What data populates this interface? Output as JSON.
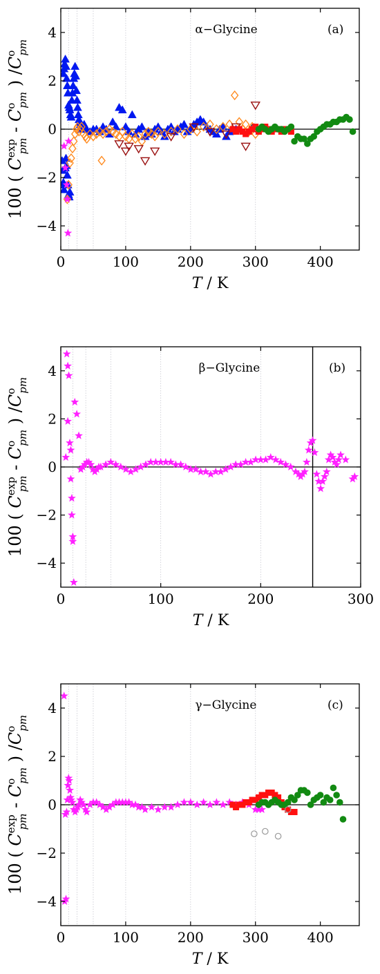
{
  "colors": {
    "blue": "#0018f0",
    "orange": "#ff8a1e",
    "darkred": "#9a1010",
    "black": "#000000",
    "red": "#ff1010",
    "green": "#128a12",
    "magenta": "#ff20ff",
    "gray": "#9a9a9a"
  },
  "chart_data": [
    {
      "type": "scatter",
      "panel_label": "(a)",
      "annotation": "α−Glycine",
      "xlabel": "T / K",
      "ylabel": "100 ( C_pm^exp - C_pm^o ) / C_pm^o",
      "xlim": [
        0,
        460
      ],
      "ylim": [
        -5,
        5
      ],
      "xticks": [
        0,
        100,
        200,
        300,
        400
      ],
      "yticks": [
        -4,
        -2,
        0,
        2,
        4
      ],
      "reference_lines": {
        "horizontal_y": [
          0
        ],
        "dotted_vertical_x": [
          12,
          25,
          50,
          100,
          200,
          300
        ]
      },
      "series": [
        {
          "marker": "triangle-up-filled",
          "color": "blue",
          "x": [
            2,
            3,
            4,
            5,
            6,
            7,
            8,
            9,
            10,
            11,
            12,
            13,
            14,
            4,
            5,
            6,
            7,
            8,
            9,
            10,
            11,
            12,
            13,
            14,
            15,
            16,
            17,
            18,
            19,
            20,
            21,
            22,
            23,
            24,
            25,
            26,
            27,
            28,
            29,
            30,
            31,
            32,
            34,
            36,
            40,
            45,
            50,
            55,
            60,
            65,
            70,
            75,
            80,
            85,
            90,
            95,
            100,
            105,
            110,
            115,
            120,
            125,
            130,
            135,
            140,
            145,
            150,
            155,
            160,
            165,
            170,
            175,
            180,
            185,
            190,
            195,
            200,
            205,
            210,
            215,
            220,
            225,
            230,
            235,
            240,
            245,
            250,
            255,
            260,
            265,
            270
          ],
          "y": [
            -1.3,
            -1.7,
            -2.2,
            -2.5,
            -2.3,
            -1.6,
            -1.2,
            -1.5,
            -1.9,
            -2.3,
            -2.7,
            -2.8,
            -2.6,
            2.3,
            2.5,
            2.7,
            2.9,
            2.6,
            2.1,
            1.8,
            1.5,
            1.0,
            0.9,
            0.8,
            0.6,
            0.5,
            1.2,
            1.5,
            1.8,
            2.1,
            2.3,
            2.6,
            2.2,
            1.6,
            1.2,
            0.9,
            0.6,
            0.4,
            0.3,
            0.2,
            0.1,
            0.0,
            0.1,
            0.2,
            0.0,
            -0.1,
            0.0,
            0.0,
            -0.1,
            0.1,
            0.0,
            -0.2,
            0.3,
            0.1,
            0.9,
            0.8,
            0.1,
            -0.1,
            0.6,
            -0.2,
            0.0,
            0.1,
            -0.3,
            -0.1,
            -0.2,
            0.0,
            0.1,
            -0.1,
            -0.3,
            0.0,
            0.1,
            -0.1,
            0.0,
            0.1,
            0.2,
            -0.1,
            0.0,
            0.2,
            0.3,
            0.4,
            0.3,
            0.1,
            0.0,
            -0.1,
            -0.2,
            0.0,
            0.1,
            -0.3,
            -0.1,
            0.0,
            0.0
          ]
        },
        {
          "marker": "diamond-open",
          "color": "orange",
          "x": [
            10,
            12,
            14,
            16,
            18,
            20,
            22,
            24,
            26,
            28,
            30,
            32,
            35,
            38,
            40,
            45,
            50,
            55,
            60,
            63,
            65,
            70,
            75,
            80,
            85,
            90,
            95,
            100,
            105,
            110,
            115,
            120,
            125,
            130,
            135,
            140,
            145,
            150,
            160,
            170,
            180,
            190,
            200,
            210,
            220,
            230,
            240,
            250,
            260,
            268,
            275,
            280,
            285,
            290,
            295,
            300
          ],
          "y": [
            -2.9,
            -2.3,
            -1.4,
            -1.2,
            -0.8,
            -0.5,
            -0.2,
            0.0,
            0.1,
            -0.1,
            0.0,
            0.1,
            -0.2,
            -0.3,
            -0.4,
            -0.2,
            -0.3,
            -0.2,
            -0.1,
            -1.3,
            -0.2,
            -0.1,
            0.0,
            -0.1,
            -0.2,
            -0.3,
            -0.1,
            -0.3,
            -0.4,
            -0.2,
            -0.4,
            -0.3,
            -0.5,
            -0.2,
            -0.1,
            -0.2,
            -0.3,
            -0.1,
            -0.2,
            -0.1,
            0.0,
            -0.2,
            0.0,
            -0.1,
            0.1,
            0.2,
            0.0,
            0.1,
            0.2,
            1.4,
            0.3,
            0.0,
            0.2,
            -0.1,
            0.1,
            -0.2
          ]
        },
        {
          "marker": "triangle-down-open",
          "color": "darkred",
          "x": [
            90,
            100,
            105,
            120,
            130,
            145,
            170,
            205,
            230,
            255,
            270,
            285,
            300
          ],
          "y": [
            -0.6,
            -0.9,
            -0.7,
            -0.8,
            -1.3,
            -0.9,
            -0.3,
            0.1,
            -0.1,
            -0.2,
            0.1,
            -0.7,
            1.0
          ]
        },
        {
          "marker": "circle-open",
          "color": "black",
          "x": [
            298,
            302
          ],
          "y": [
            0.1,
            0.0
          ]
        },
        {
          "marker": "square-filled",
          "color": "red",
          "x": [
            265,
            270,
            275,
            280,
            285,
            290,
            295,
            300,
            305,
            310,
            315,
            320,
            325,
            330,
            335,
            340,
            345,
            350,
            355
          ],
          "y": [
            0.0,
            -0.1,
            0.0,
            -0.1,
            -0.2,
            -0.1,
            0.0,
            0.1,
            -0.1,
            0.0,
            0.1,
            0.0,
            -0.1,
            0.0,
            0.0,
            -0.1,
            0.0,
            0.0,
            -0.1
          ]
        },
        {
          "marker": "circle-filled",
          "color": "green",
          "x": [
            305,
            310,
            315,
            320,
            325,
            330,
            335,
            340,
            345,
            350,
            355,
            360,
            365,
            370,
            375,
            380,
            385,
            390,
            395,
            400,
            405,
            410,
            415,
            420,
            425,
            430,
            435,
            440,
            445,
            450
          ],
          "y": [
            0.0,
            0.1,
            0.0,
            -0.1,
            0.0,
            0.1,
            0.0,
            0.0,
            -0.1,
            0.0,
            0.1,
            -0.5,
            -0.3,
            -0.4,
            -0.4,
            -0.6,
            -0.4,
            -0.3,
            -0.1,
            0.0,
            0.1,
            0.2,
            0.2,
            0.3,
            0.3,
            0.4,
            0.4,
            0.5,
            0.4,
            -0.1
          ]
        },
        {
          "marker": "star",
          "color": "magenta",
          "x": [
            5,
            7,
            9,
            10,
            11,
            12
          ],
          "y": [
            -0.7,
            -1.6,
            -2.3,
            -2.9,
            -4.3,
            -0.5
          ]
        }
      ]
    },
    {
      "type": "scatter",
      "panel_label": "(b)",
      "annotation": "β−Glycine",
      "xlabel": "T / K",
      "ylabel": "100 ( C_pm^exp - C_pm^o ) / C_pm^o",
      "xlim": [
        0,
        300
      ],
      "ylim": [
        -5,
        5
      ],
      "xticks": [
        0,
        100,
        200,
        300
      ],
      "yticks": [
        -4,
        -2,
        0,
        2,
        4
      ],
      "reference_lines": {
        "horizontal_y": [
          0
        ],
        "vertical_x": [
          252
        ],
        "dotted_vertical_x": [
          12,
          25,
          50,
          100,
          200
        ]
      },
      "series": [
        {
          "marker": "star",
          "color": "magenta",
          "x": [
            5,
            6,
            7,
            7,
            8,
            9,
            10,
            10,
            11,
            11,
            12,
            12,
            13,
            14,
            16,
            18,
            20,
            22,
            24,
            26,
            28,
            30,
            32,
            34,
            36,
            38,
            40,
            45,
            50,
            55,
            60,
            65,
            70,
            75,
            80,
            85,
            90,
            95,
            100,
            105,
            110,
            115,
            120,
            125,
            130,
            135,
            140,
            145,
            150,
            155,
            160,
            165,
            170,
            175,
            180,
            185,
            190,
            195,
            200,
            205,
            210,
            215,
            220,
            225,
            230,
            235,
            238,
            240,
            242,
            244,
            246,
            248,
            250,
            252,
            254,
            256,
            258,
            260,
            262,
            264,
            266,
            268,
            270,
            272,
            274,
            276,
            278,
            280,
            285,
            292,
            294
          ],
          "y": [
            0.4,
            4.7,
            4.2,
            1.9,
            3.8,
            1.0,
            0.7,
            -0.5,
            -1.3,
            -2.0,
            -2.9,
            -3.1,
            -4.8,
            2.7,
            2.2,
            1.3,
            -0.1,
            0.0,
            0.1,
            0.2,
            0.2,
            0.1,
            -0.1,
            -0.2,
            -0.1,
            0.0,
            0.0,
            0.1,
            0.2,
            0.1,
            0.0,
            -0.1,
            -0.2,
            -0.1,
            0.0,
            0.1,
            0.2,
            0.2,
            0.2,
            0.2,
            0.2,
            0.1,
            0.1,
            0.0,
            -0.1,
            -0.1,
            -0.2,
            -0.2,
            -0.3,
            -0.2,
            -0.2,
            -0.1,
            0.0,
            0.1,
            0.1,
            0.2,
            0.2,
            0.3,
            0.3,
            0.3,
            0.4,
            0.3,
            0.2,
            0.1,
            0.0,
            -0.2,
            -0.3,
            -0.4,
            -0.3,
            -0.2,
            0.2,
            0.7,
            1.0,
            1.1,
            0.6,
            -0.3,
            -0.6,
            -0.9,
            -0.6,
            -0.4,
            -0.2,
            0.3,
            0.5,
            0.4,
            0.2,
            0.1,
            0.3,
            0.5,
            0.3,
            -0.5,
            -0.4
          ]
        }
      ]
    },
    {
      "type": "scatter",
      "panel_label": "(c)",
      "annotation": "γ−Glycine",
      "xlabel": "T / K",
      "ylabel": "100 ( C_pm^exp - C_pm^o ) / C_pm^o",
      "xlim": [
        0,
        460
      ],
      "ylim": [
        -5,
        5
      ],
      "xticks": [
        0,
        100,
        200,
        300,
        400
      ],
      "yticks": [
        -4,
        -2,
        0,
        2,
        4
      ],
      "reference_lines": {
        "horizontal_y": [
          0
        ],
        "dotted_vertical_x": [
          12,
          25,
          50,
          100,
          200,
          300
        ]
      },
      "series": [
        {
          "marker": "star",
          "color": "magenta",
          "x": [
            5,
            6,
            7,
            8,
            9,
            10,
            11,
            12,
            13,
            14,
            15,
            16,
            18,
            20,
            22,
            24,
            26,
            28,
            30,
            32,
            35,
            38,
            40,
            45,
            50,
            55,
            60,
            65,
            70,
            75,
            80,
            85,
            90,
            95,
            100,
            105,
            110,
            115,
            120,
            125,
            130,
            140,
            150,
            160,
            170,
            180,
            190,
            200,
            210,
            220,
            230,
            240,
            250,
            260,
            270,
            280,
            290,
            300,
            305,
            310
          ],
          "y": [
            4.5,
            -4.0,
            -0.4,
            -3.9,
            -0.3,
            0.2,
            0.8,
            1.1,
            1.0,
            0.6,
            0.3,
            0.2,
            0.1,
            -0.2,
            -0.3,
            -0.2,
            -0.1,
            0.0,
            0.2,
            0.1,
            0.0,
            -0.2,
            -0.3,
            0.0,
            0.1,
            0.1,
            0.0,
            -0.1,
            -0.2,
            -0.1,
            0.0,
            0.1,
            0.1,
            0.1,
            0.1,
            0.1,
            0.0,
            0.0,
            -0.1,
            -0.1,
            -0.2,
            -0.1,
            -0.2,
            -0.1,
            -0.1,
            0.0,
            0.1,
            0.1,
            0.0,
            0.1,
            0.0,
            0.1,
            0.0,
            0.1,
            0.0,
            0.1,
            0.0,
            -0.2,
            -0.2,
            -0.2
          ]
        },
        {
          "marker": "square-filled",
          "color": "red",
          "x": [
            265,
            270,
            275,
            280,
            285,
            290,
            295,
            300,
            305,
            310,
            315,
            320,
            325,
            330,
            335,
            340,
            345,
            350,
            355,
            360
          ],
          "y": [
            0.0,
            -0.1,
            0.0,
            0.0,
            0.1,
            0.1,
            0.2,
            0.2,
            0.3,
            0.4,
            0.4,
            0.5,
            0.5,
            0.4,
            0.3,
            0.1,
            -0.1,
            -0.2,
            -0.3,
            -0.3
          ]
        },
        {
          "marker": "circle-filled",
          "color": "green",
          "x": [
            305,
            310,
            315,
            320,
            325,
            330,
            335,
            340,
            345,
            350,
            355,
            360,
            365,
            370,
            375,
            380,
            385,
            390,
            395,
            400,
            405,
            410,
            415,
            420,
            425,
            430,
            435
          ],
          "y": [
            0.0,
            0.1,
            0.1,
            0.0,
            0.1,
            0.2,
            0.1,
            0.0,
            0.0,
            0.1,
            0.3,
            0.2,
            0.4,
            0.6,
            0.6,
            0.5,
            0.0,
            0.2,
            0.3,
            0.4,
            0.1,
            0.3,
            0.2,
            0.7,
            0.4,
            0.1,
            -0.6
          ]
        },
        {
          "marker": "circle-open",
          "color": "gray",
          "x": [
            298,
            315,
            335,
            350
          ],
          "y": [
            -1.2,
            -1.1,
            -1.3,
            -0.2
          ]
        }
      ]
    }
  ]
}
